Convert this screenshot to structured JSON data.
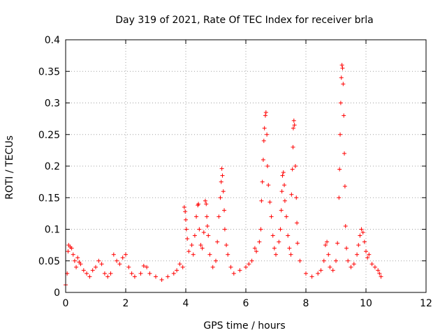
{
  "chart_data": {
    "type": "scatter",
    "title": "Day 319 of 2021, Rate Of TEC Index for receiver brla",
    "xlabel": "GPS time / hours",
    "ylabel": "ROTI / TECUs",
    "xlim": [
      0,
      12
    ],
    "ylim": [
      0,
      0.4
    ],
    "xticks": [
      "0",
      "2",
      "4",
      "6",
      "8",
      "10",
      "12"
    ],
    "yticks": [
      "0",
      "0.05",
      "0.1",
      "0.15",
      "0.2",
      "0.25",
      "0.3",
      "0.35",
      "0.4"
    ],
    "grid": true,
    "marker": "+",
    "color": "#ff0000",
    "points": [
      [
        0.0,
        0.012
      ],
      [
        0.05,
        0.03
      ],
      [
        0.08,
        0.065
      ],
      [
        0.1,
        0.075
      ],
      [
        0.15,
        0.072
      ],
      [
        0.2,
        0.07
      ],
      [
        0.25,
        0.06
      ],
      [
        0.3,
        0.05
      ],
      [
        0.35,
        0.04
      ],
      [
        0.4,
        0.055
      ],
      [
        0.45,
        0.048
      ],
      [
        0.5,
        0.045
      ],
      [
        0.6,
        0.035
      ],
      [
        0.7,
        0.03
      ],
      [
        0.8,
        0.025
      ],
      [
        0.9,
        0.035
      ],
      [
        1.0,
        0.04
      ],
      [
        1.1,
        0.05
      ],
      [
        1.2,
        0.045
      ],
      [
        1.3,
        0.03
      ],
      [
        1.4,
        0.025
      ],
      [
        1.5,
        0.03
      ],
      [
        1.6,
        0.06
      ],
      [
        1.7,
        0.05
      ],
      [
        1.8,
        0.045
      ],
      [
        1.9,
        0.055
      ],
      [
        2.0,
        0.06
      ],
      [
        2.1,
        0.04
      ],
      [
        2.2,
        0.03
      ],
      [
        2.3,
        0.025
      ],
      [
        2.5,
        0.03
      ],
      [
        2.6,
        0.042
      ],
      [
        2.7,
        0.04
      ],
      [
        2.8,
        0.03
      ],
      [
        3.0,
        0.025
      ],
      [
        3.2,
        0.02
      ],
      [
        3.4,
        0.025
      ],
      [
        3.6,
        0.03
      ],
      [
        3.7,
        0.035
      ],
      [
        3.8,
        0.045
      ],
      [
        3.9,
        0.04
      ],
      [
        3.95,
        0.135
      ],
      [
        3.98,
        0.128
      ],
      [
        4.0,
        0.115
      ],
      [
        4.02,
        0.1
      ],
      [
        4.05,
        0.085
      ],
      [
        4.1,
        0.065
      ],
      [
        4.2,
        0.075
      ],
      [
        4.25,
        0.06
      ],
      [
        4.3,
        0.09
      ],
      [
        4.35,
        0.12
      ],
      [
        4.4,
        0.138
      ],
      [
        4.42,
        0.14
      ],
      [
        4.45,
        0.1
      ],
      [
        4.5,
        0.075
      ],
      [
        4.55,
        0.07
      ],
      [
        4.6,
        0.095
      ],
      [
        4.65,
        0.145
      ],
      [
        4.68,
        0.14
      ],
      [
        4.7,
        0.12
      ],
      [
        4.72,
        0.105
      ],
      [
        4.75,
        0.09
      ],
      [
        4.8,
        0.06
      ],
      [
        4.9,
        0.04
      ],
      [
        5.0,
        0.05
      ],
      [
        5.05,
        0.08
      ],
      [
        5.1,
        0.12
      ],
      [
        5.15,
        0.15
      ],
      [
        5.18,
        0.175
      ],
      [
        5.2,
        0.196
      ],
      [
        5.22,
        0.185
      ],
      [
        5.25,
        0.16
      ],
      [
        5.28,
        0.13
      ],
      [
        5.3,
        0.1
      ],
      [
        5.35,
        0.075
      ],
      [
        5.4,
        0.06
      ],
      [
        5.5,
        0.04
      ],
      [
        5.6,
        0.03
      ],
      [
        5.8,
        0.035
      ],
      [
        6.0,
        0.04
      ],
      [
        6.1,
        0.045
      ],
      [
        6.2,
        0.05
      ],
      [
        6.3,
        0.07
      ],
      [
        6.35,
        0.065
      ],
      [
        6.45,
        0.08
      ],
      [
        6.5,
        0.1
      ],
      [
        6.52,
        0.145
      ],
      [
        6.55,
        0.175
      ],
      [
        6.58,
        0.21
      ],
      [
        6.6,
        0.24
      ],
      [
        6.62,
        0.26
      ],
      [
        6.65,
        0.28
      ],
      [
        6.67,
        0.285
      ],
      [
        6.7,
        0.25
      ],
      [
        6.72,
        0.2
      ],
      [
        6.75,
        0.17
      ],
      [
        6.8,
        0.143
      ],
      [
        6.85,
        0.12
      ],
      [
        6.9,
        0.09
      ],
      [
        6.95,
        0.07
      ],
      [
        7.0,
        0.06
      ],
      [
        7.1,
        0.08
      ],
      [
        7.15,
        0.1
      ],
      [
        7.18,
        0.13
      ],
      [
        7.2,
        0.16
      ],
      [
        7.22,
        0.185
      ],
      [
        7.25,
        0.19
      ],
      [
        7.28,
        0.17
      ],
      [
        7.3,
        0.145
      ],
      [
        7.35,
        0.12
      ],
      [
        7.4,
        0.09
      ],
      [
        7.45,
        0.07
      ],
      [
        7.5,
        0.06
      ],
      [
        7.52,
        0.155
      ],
      [
        7.55,
        0.195
      ],
      [
        7.57,
        0.23
      ],
      [
        7.58,
        0.26
      ],
      [
        7.6,
        0.272
      ],
      [
        7.62,
        0.265
      ],
      [
        7.65,
        0.2
      ],
      [
        7.68,
        0.15
      ],
      [
        7.7,
        0.11
      ],
      [
        7.72,
        0.078
      ],
      [
        7.8,
        0.05
      ],
      [
        8.0,
        0.03
      ],
      [
        8.2,
        0.025
      ],
      [
        8.4,
        0.03
      ],
      [
        8.5,
        0.035
      ],
      [
        8.6,
        0.05
      ],
      [
        8.65,
        0.075
      ],
      [
        8.7,
        0.08
      ],
      [
        8.75,
        0.06
      ],
      [
        8.8,
        0.04
      ],
      [
        8.9,
        0.035
      ],
      [
        9.0,
        0.05
      ],
      [
        9.05,
        0.078
      ],
      [
        9.1,
        0.15
      ],
      [
        9.12,
        0.195
      ],
      [
        9.14,
        0.25
      ],
      [
        9.16,
        0.3
      ],
      [
        9.18,
        0.34
      ],
      [
        9.2,
        0.36
      ],
      [
        9.22,
        0.355
      ],
      [
        9.24,
        0.33
      ],
      [
        9.26,
        0.28
      ],
      [
        9.28,
        0.22
      ],
      [
        9.3,
        0.168
      ],
      [
        9.32,
        0.105
      ],
      [
        9.35,
        0.07
      ],
      [
        9.4,
        0.05
      ],
      [
        9.5,
        0.04
      ],
      [
        9.6,
        0.045
      ],
      [
        9.7,
        0.06
      ],
      [
        9.75,
        0.075
      ],
      [
        9.8,
        0.09
      ],
      [
        9.85,
        0.1
      ],
      [
        9.9,
        0.095
      ],
      [
        9.95,
        0.08
      ],
      [
        10.0,
        0.065
      ],
      [
        10.05,
        0.055
      ],
      [
        10.1,
        0.06
      ],
      [
        10.2,
        0.045
      ],
      [
        10.3,
        0.04
      ],
      [
        10.4,
        0.035
      ],
      [
        10.45,
        0.03
      ],
      [
        10.5,
        0.025
      ]
    ]
  }
}
